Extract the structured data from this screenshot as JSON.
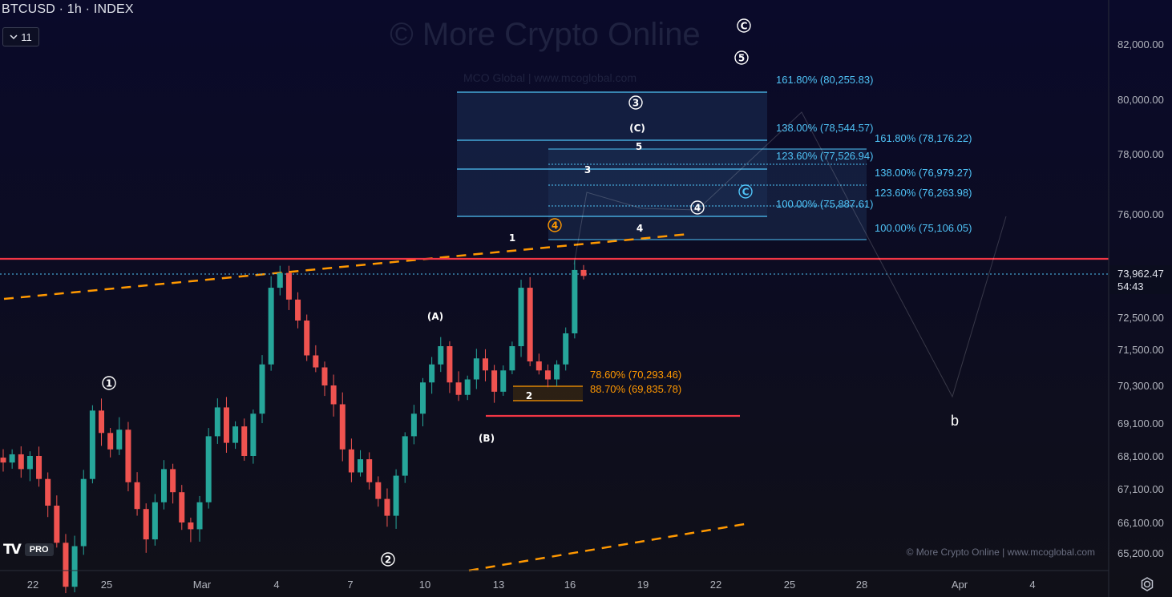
{
  "header": {
    "title": "BTCUSD · 1h · INDEX",
    "indicator_count": "11",
    "chevron_icon": "chevron-down-icon"
  },
  "watermark": {
    "main": "© More Crypto Online",
    "sub": "MCO Global  |  www.mcoglobal.com",
    "footer": "© More Crypto Online  |  www.mcoglobal.com"
  },
  "logo": {
    "brand": "TV",
    "badge": "PRO"
  },
  "colors": {
    "up": "#26a69a",
    "down": "#ef5350",
    "fib_blue": "#4fc3f7",
    "fib_orange": "#ff9800",
    "red_line": "#f23645",
    "bg": "#0b0d1e"
  },
  "chart_data": {
    "type": "candlestick",
    "price_axis_labels": [
      "82,000.00",
      "80,000.00",
      "78,000.00",
      "76,000.00",
      "72,500.00",
      "71,500.00",
      "70,300.00",
      "69,100.00",
      "68,100.00",
      "67,100.00",
      "66,100.00",
      "65,200.00"
    ],
    "price_axis_values": [
      82000,
      80000,
      78000,
      76000,
      72500,
      71500,
      70300,
      69100,
      68100,
      67100,
      66100,
      65200
    ],
    "time_axis_labels": [
      "22",
      "25",
      "Mar",
      "4",
      "7",
      "10",
      "13",
      "16",
      "19",
      "22",
      "25",
      "28",
      "Apr",
      "4"
    ],
    "current_price": "73,962.47",
    "countdown": "54:43",
    "fib_levels_left": [
      "161.80% (80,255.83)",
      "138.00% (78,544.57)",
      "123.60% (77,526.94)",
      "100.00% (75,887.61)"
    ],
    "fib_levels_right": [
      "161.80% (78,176.22)",
      "138.00% (76,979.27)",
      "123.60% (76,263.98)",
      "100.00% (75,106.05)"
    ],
    "fib_levels_retrace": [
      "78.60% (70,293.46)",
      "88.70% (69,835.78)"
    ],
    "wave_labels_circled": [
      "①",
      "②",
      "③",
      "④",
      "⑤",
      "Ⓒ",
      "Ⓒ",
      "④"
    ],
    "wave_labels_plain": [
      "(A)",
      "(B)",
      "(C)",
      "1",
      "2",
      "3",
      "4",
      "5",
      "b"
    ],
    "close_prices": [
      67900,
      68150,
      67700,
      68100,
      67400,
      66600,
      65500,
      64200,
      65400,
      67400,
      69500,
      68800,
      68300,
      68900,
      67300,
      66500,
      65600,
      66700,
      67700,
      67000,
      66100,
      65900,
      66700,
      68700,
      69600,
      68500,
      69000,
      68100,
      69400,
      71000,
      73500,
      74000,
      73100,
      72400,
      71300,
      70900,
      70300,
      69700,
      68300,
      67600,
      68000,
      67300,
      66800,
      66300,
      67500,
      68700,
      69400,
      70400,
      71000,
      71600,
      70400,
      70000,
      70500,
      71200,
      70800,
      70100,
      70800,
      71600,
      73500,
      71100,
      70800,
      70500,
      71000,
      72000,
      74100,
      73900
    ]
  }
}
